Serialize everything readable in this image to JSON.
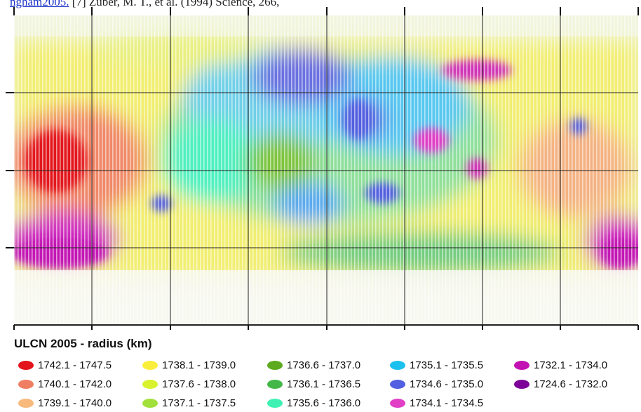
{
  "header": {
    "link": "ngham2005.",
    "text": "[7] Zuber, M. T., et al. (1994) Science, 266,"
  },
  "legend": {
    "title": "ULCN 2005 - radius (km)",
    "items": [
      {
        "label": "1742.1 - 1747.5",
        "color": "#e3141c"
      },
      {
        "label": "1740.1 - 1742.0",
        "color": "#f07e62"
      },
      {
        "label": "1739.1 - 1740.0",
        "color": "#f7b97c"
      },
      {
        "label": "1738.1 - 1739.0",
        "color": "#faee3c"
      },
      {
        "label": "1737.6 - 1738.0",
        "color": "#d9f22e"
      },
      {
        "label": "1737.1 - 1737.5",
        "color": "#a2e03c"
      },
      {
        "label": "1736.6 - 1737.0",
        "color": "#5daa1e"
      },
      {
        "label": "1736.1 - 1736.5",
        "color": "#43b849"
      },
      {
        "label": "1735.6 - 1736.0",
        "color": "#3ff2b4"
      },
      {
        "label": "1735.1 - 1735.5",
        "color": "#1cc0ef"
      },
      {
        "label": "1734.6 - 1735.0",
        "color": "#525fe0"
      },
      {
        "label": "1734.1 - 1734.5",
        "color": "#e03fc6"
      },
      {
        "label": "1732.1 - 1734.0",
        "color": "#c312b4"
      },
      {
        "label": "1724.6 - 1732.0",
        "color": "#7d0098"
      }
    ]
  }
}
